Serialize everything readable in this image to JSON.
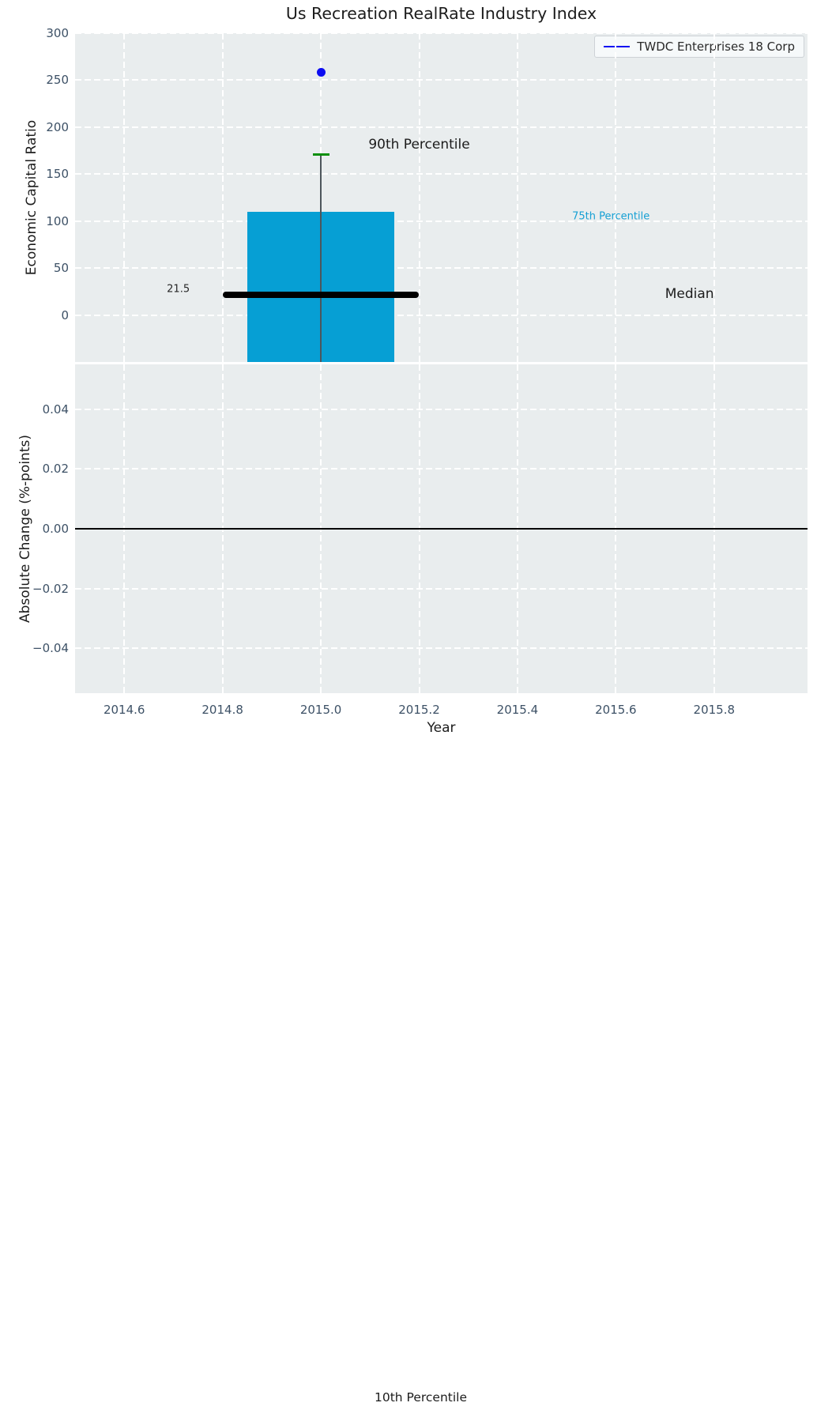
{
  "title": "Us Recreation RealRate Industry Index",
  "figure_text": {
    "bottom_annotation": "10th Percentile",
    "bottom_annotation_fx": 0.515,
    "bottom_annotation_fy": 0.9885
  },
  "colors": {
    "figure_background": "#ffffff",
    "axes_background": "#e9edee",
    "grid": "#ffffff",
    "tick_label": "#3d5166",
    "text": "#1c1c1c",
    "box_fill": "#069fd4",
    "median_line": "#000000",
    "whisker_line": "#4d565c",
    "whisker_cap": "#0a8f0a",
    "outlier_marker": "#0d0df2",
    "legend_line": "#0d0df2",
    "zero_line": "#000000",
    "percentile75_text": "#16a0d4"
  },
  "chart_data": [
    {
      "type": "boxplot",
      "title": "Us Recreation RealRate Industry Index",
      "ylabel": "Economic Capital Ratio",
      "xlim": [
        2014.5,
        2015.99
      ],
      "ylim": [
        -50,
        300
      ],
      "grid": {
        "on": true,
        "style": "dashed",
        "color": "#ffffff"
      },
      "xtick_values": [
        2014.6,
        2014.8,
        2015.0,
        2015.2,
        2015.4,
        2015.6,
        2015.8
      ],
      "ytick_values": [
        0,
        50,
        100,
        150,
        200,
        250,
        300
      ],
      "ytick_labels": [
        "0",
        "50",
        "100",
        "150",
        "200",
        "250",
        "300"
      ],
      "legend": {
        "label": "TWDC Enterprises 18 Corp",
        "position": "upper right"
      },
      "box": {
        "series_name": "TWDC Enterprises 18 Corp",
        "x": 2015.0,
        "box_width": 0.3,
        "median": 21.5,
        "q3": 110,
        "q1": null,
        "whisker_high": 171,
        "whisker_low": null,
        "outlier": 258,
        "median_line_half_width": 0.2,
        "clipped_below_axis": true
      },
      "annotations": [
        {
          "text": "90th Percentile",
          "x": 2015.2,
          "y": 181,
          "color": "#1c1c1c",
          "size": 17
        },
        {
          "text": "75th Percentile",
          "x": 2015.59,
          "y": 105,
          "color": "#16a0d4",
          "size": 13
        },
        {
          "text": "Median",
          "x": 2015.75,
          "y": 22,
          "color": "#1c1c1c",
          "size": 17
        },
        {
          "text": "21.5",
          "x": 2014.71,
          "y": 27,
          "color": "#262626",
          "size": 13
        }
      ]
    },
    {
      "type": "line",
      "ylabel": "Absolute Change (%-points)",
      "xlabel": "Year",
      "xlim": [
        2014.5,
        2015.99
      ],
      "ylim": [
        -0.055,
        0.055
      ],
      "grid": {
        "on": true,
        "style": "dashed",
        "color": "#ffffff"
      },
      "xtick_values": [
        2014.6,
        2014.8,
        2015.0,
        2015.2,
        2015.4,
        2015.6,
        2015.8
      ],
      "xtick_labels": [
        "2014.6",
        "2014.8",
        "2015.0",
        "2015.2",
        "2015.4",
        "2015.6",
        "2015.8"
      ],
      "ytick_values": [
        0.04,
        0.02,
        0.0,
        -0.02,
        -0.04
      ],
      "ytick_labels": [
        "0.04",
        "0.02",
        "0.00",
        "−0.02",
        "−0.04"
      ],
      "zero_line": {
        "y": 0.0,
        "color": "#000000"
      }
    }
  ]
}
